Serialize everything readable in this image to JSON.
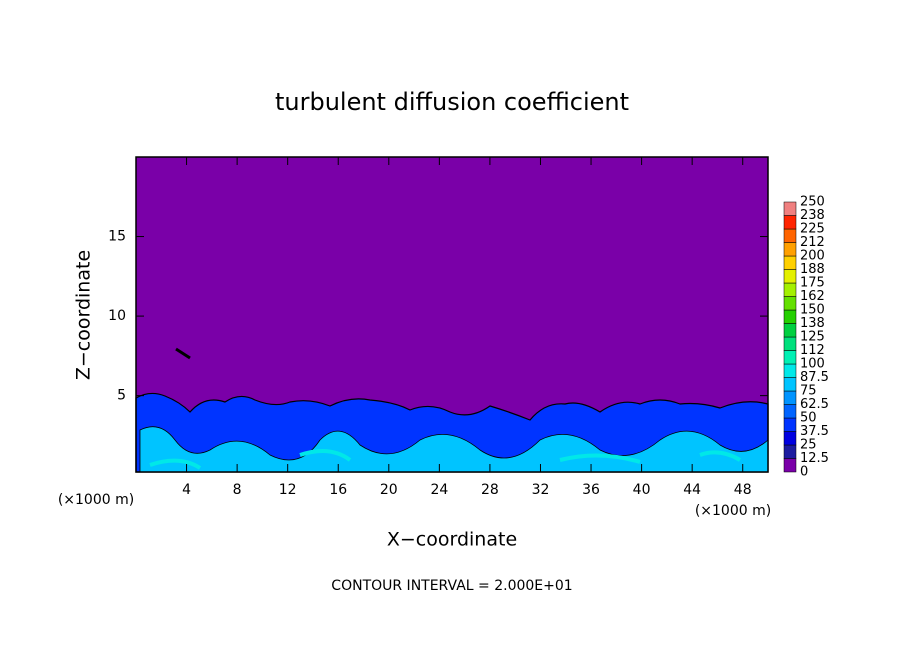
{
  "chart_data": {
    "type": "contour",
    "title": "turbulent diffusion coefficient",
    "x_label": "X−coordinate",
    "y_label": "Z−coordinate",
    "x_unit": "(×1000 m)",
    "y_unit": "(×1000 m)",
    "footer": "CONTOUR INTERVAL = 2.000E+01",
    "xlim": [
      0,
      50
    ],
    "ylim": [
      0.2,
      20
    ],
    "xticks": [
      4,
      8,
      12,
      16,
      20,
      24,
      28,
      32,
      36,
      40,
      44,
      48
    ],
    "yticks": [
      5,
      10,
      15
    ],
    "colorbar": {
      "levels": [
        0,
        12.5,
        25,
        37.5,
        50,
        62.5,
        75,
        87.5,
        100,
        {
          "value": 112.5,
          "label": "112"
        },
        125,
        {
          "value": 137.5,
          "label": "138"
        },
        150,
        {
          "value": 162.5,
          "label": "162"
        },
        175,
        {
          "value": 187.5,
          "label": "188"
        },
        200,
        {
          "value": 212.5,
          "label": "212"
        },
        225,
        {
          "value": 237.5,
          "label": "238"
        },
        250
      ],
      "colors": [
        "#7a00a8",
        "#1c1ca0",
        "#0000e0",
        "#0034ff",
        "#0064ff",
        "#0094ff",
        "#00c4ff",
        "#00e8e8",
        "#00f0b4",
        "#00e07c",
        "#00d040",
        "#24d000",
        "#64e000",
        "#a4f000",
        "#e4f000",
        "#ffd000",
        "#ffa000",
        "#ff6400",
        "#ff2400",
        "#f08080"
      ]
    }
  }
}
